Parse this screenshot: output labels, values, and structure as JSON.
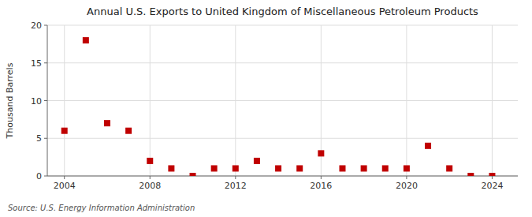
{
  "chart_data": {
    "type": "scatter",
    "title": "Annual U.S. Exports to United Kingdom of Miscellaneous Petroleum Products",
    "y_label": "Thousand Barrels",
    "annotations": [
      "Source: U.S. Energy Information Administration"
    ],
    "x": [
      2004,
      2005,
      2006,
      2007,
      2008,
      2009,
      2010,
      2011,
      2012,
      2013,
      2014,
      2015,
      2016,
      2017,
      2018,
      2019,
      2020,
      2021,
      2022,
      2023,
      2024
    ],
    "values": [
      6,
      18,
      7,
      6,
      2,
      1,
      0,
      1,
      1,
      2,
      1,
      1,
      3,
      1,
      1,
      1,
      1,
      4,
      1,
      0,
      0
    ],
    "color": "#c00000",
    "marker": "square",
    "xlim": [
      2003.2,
      2025.2
    ],
    "xticks": [
      2004,
      2008,
      2012,
      2016,
      2020,
      2024
    ],
    "ylim": [
      0,
      20
    ],
    "yticks": [
      0,
      5,
      10,
      15,
      20
    ],
    "grid": true
  }
}
